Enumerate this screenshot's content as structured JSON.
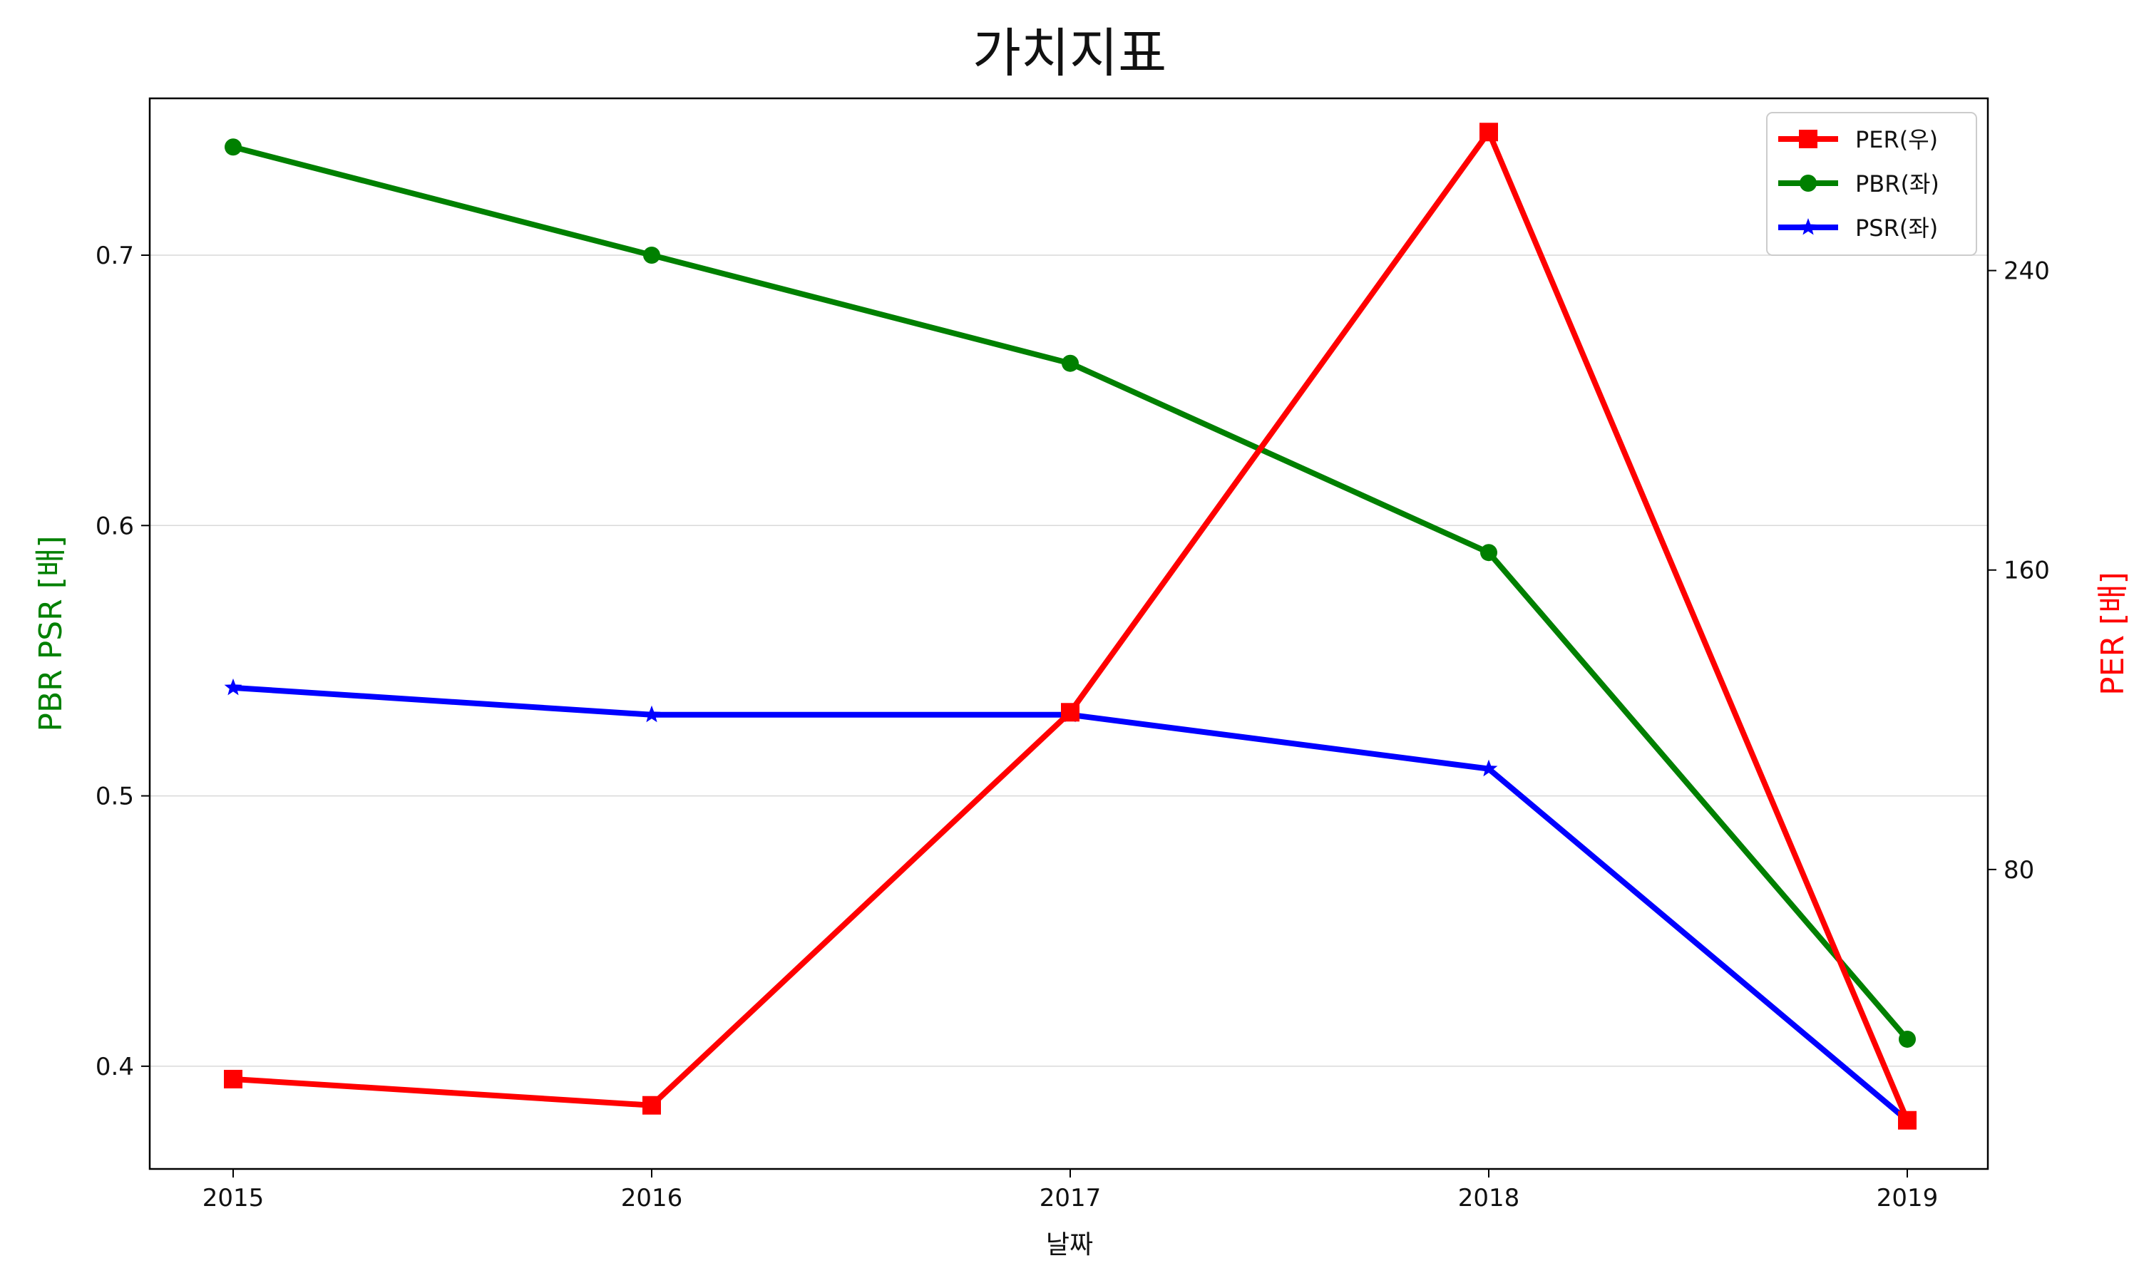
{
  "chart_data": {
    "type": "line",
    "title": "가치지표",
    "xlabel": "날짜",
    "ylabel_left": "PBR PSR [배]",
    "ylabel_right": "PER [배]",
    "categories": [
      "2015",
      "2016",
      "2017",
      "2018",
      "2019"
    ],
    "ylim_left": [
      0.362,
      0.758
    ],
    "ylim_right": [
      0,
      286
    ],
    "yticks_left": [
      0.4,
      0.5,
      0.6,
      0.7
    ],
    "yticks_left_labels": [
      "0.4",
      "0.5",
      "0.6",
      "0.7"
    ],
    "yticks_right": [
      80,
      160,
      240
    ],
    "yticks_right_labels": [
      "80",
      "160",
      "240"
    ],
    "grid": true,
    "legend_position": "top-right",
    "series": [
      {
        "name": "PER(우)",
        "axis": "right",
        "color": "#ff0000",
        "marker": "square",
        "values": [
          24,
          17,
          122,
          277,
          13
        ]
      },
      {
        "name": "PBR(좌)",
        "axis": "left",
        "color": "#008000",
        "marker": "circle",
        "values": [
          0.74,
          0.7,
          0.66,
          0.59,
          0.41
        ]
      },
      {
        "name": "PSR(좌)",
        "axis": "left",
        "color": "#0000ff",
        "marker": "star",
        "values": [
          0.54,
          0.53,
          0.53,
          0.51,
          0.38
        ]
      }
    ],
    "colors": {
      "left_axis_label": "#008000",
      "right_axis_label": "#ff0000",
      "grid": "#d9d9d9",
      "frame": "#000000"
    }
  }
}
